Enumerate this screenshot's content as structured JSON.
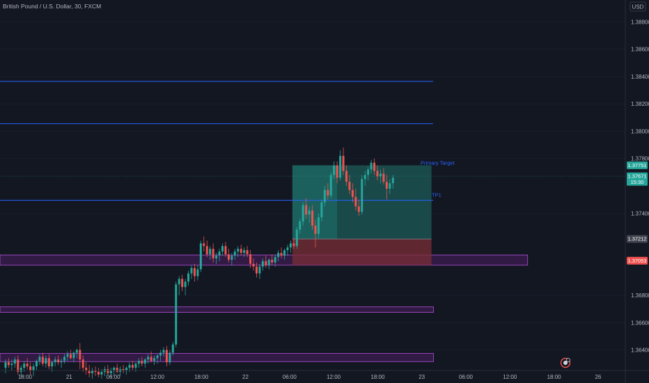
{
  "header": {
    "title": "British Pound / U.S. Dollar, 30, FXCM"
  },
  "currency_badge": "USD",
  "colors": {
    "background": "#131722",
    "up": "#26a69a",
    "down": "#ef5350",
    "level_line": "#2962ff",
    "zone_fill": "#4a1f63",
    "zone_border": "#b04fd6",
    "profit_fill": "#1c5b57",
    "loss_fill": "#7a2d35",
    "axis_text": "#b2b5be",
    "grid": "#1e2230"
  },
  "chart_data": {
    "type": "candlestick",
    "title": "British Pound / U.S. Dollar, 30, FXCM",
    "x_ticks": [
      "18:00",
      "21",
      "06:00",
      "12:00",
      "18:00",
      "22",
      "06:00",
      "12:00",
      "18:00",
      "23",
      "06:00",
      "12:00",
      "18:00",
      "26"
    ],
    "y_ticks": [
      "1.38800",
      "1.38600",
      "1.38400",
      "1.38200",
      "1.38000",
      "1.37800",
      "1.37400",
      "1.36800",
      "1.36600",
      "1.36400"
    ],
    "ylim": [
      1.3625,
      1.3895
    ],
    "price_labels": [
      {
        "label": "1.37751",
        "value": 1.37751,
        "color": "#26a69a"
      },
      {
        "label": "1.37671",
        "sub": "15:30",
        "value": 1.37671,
        "color": "#26a69a"
      },
      {
        "label": "1.37212",
        "value": 1.37212,
        "color": "#434651"
      },
      {
        "label": "1.37053",
        "value": 1.37053,
        "color": "#ef5350"
      }
    ],
    "horizontal_lines": [
      {
        "value": 1.38365
      },
      {
        "value": 1.38055
      },
      {
        "value": 1.37495
      }
    ],
    "zones": [
      {
        "top": 1.37095,
        "bottom": 1.3702,
        "end_frac": 0.813
      },
      {
        "top": 1.36715,
        "bottom": 1.36675,
        "end_frac": 0.668
      },
      {
        "top": 1.36375,
        "bottom": 1.36315,
        "end_frac": 0.668
      }
    ],
    "position": {
      "entry": 1.37212,
      "target": 1.37751,
      "stop": 1.3702,
      "start_index": 93,
      "end_index": 137,
      "hold_end_index": 107
    },
    "annotations": [
      {
        "text": "Primary Target",
        "value": 1.37751
      },
      {
        "text": "TP1",
        "value": 1.37516
      }
    ],
    "candles": [
      [
        1.3627,
        1.3633,
        1.3623,
        1.3631
      ],
      [
        1.3631,
        1.3634,
        1.3627,
        1.3629
      ],
      [
        1.3629,
        1.3633,
        1.3625,
        1.363
      ],
      [
        1.363,
        1.3635,
        1.3627,
        1.3633
      ],
      [
        1.3633,
        1.3636,
        1.3622,
        1.3624
      ],
      [
        1.3624,
        1.3629,
        1.362,
        1.3627
      ],
      [
        1.3627,
        1.3632,
        1.3624,
        1.363
      ],
      [
        1.363,
        1.3634,
        1.3626,
        1.3628
      ],
      [
        1.3628,
        1.3631,
        1.3622,
        1.3625
      ],
      [
        1.3625,
        1.363,
        1.3621,
        1.3628
      ],
      [
        1.3628,
        1.3633,
        1.3625,
        1.3632
      ],
      [
        1.3632,
        1.3637,
        1.3629,
        1.3635
      ],
      [
        1.3635,
        1.3638,
        1.3628,
        1.363
      ],
      [
        1.363,
        1.3636,
        1.3627,
        1.3634
      ],
      [
        1.3634,
        1.3637,
        1.3626,
        1.3628
      ],
      [
        1.3628,
        1.3632,
        1.3624,
        1.3631
      ],
      [
        1.3631,
        1.3635,
        1.3628,
        1.3633
      ],
      [
        1.3633,
        1.3636,
        1.3629,
        1.3631
      ],
      [
        1.3631,
        1.3634,
        1.3627,
        1.3632
      ],
      [
        1.3632,
        1.3637,
        1.363,
        1.3635
      ],
      [
        1.3635,
        1.3639,
        1.3632,
        1.3637
      ],
      [
        1.3637,
        1.364,
        1.3633,
        1.3634
      ],
      [
        1.3634,
        1.3639,
        1.3631,
        1.3638
      ],
      [
        1.3638,
        1.3641,
        1.3634,
        1.364
      ],
      [
        1.364,
        1.3645,
        1.3626,
        1.3633
      ],
      [
        1.3633,
        1.3636,
        1.3624,
        1.3627
      ],
      [
        1.3627,
        1.3631,
        1.3622,
        1.3625
      ],
      [
        1.3625,
        1.3629,
        1.362,
        1.3623
      ],
      [
        1.3623,
        1.3627,
        1.3619,
        1.3625
      ],
      [
        1.3625,
        1.3628,
        1.3621,
        1.3624
      ],
      [
        1.3624,
        1.3627,
        1.362,
        1.3622
      ],
      [
        1.3622,
        1.3626,
        1.3619,
        1.3624
      ],
      [
        1.3624,
        1.3628,
        1.3621,
        1.3626
      ],
      [
        1.3626,
        1.3629,
        1.3622,
        1.3623
      ],
      [
        1.3623,
        1.3627,
        1.362,
        1.3625
      ],
      [
        1.3625,
        1.3628,
        1.3621,
        1.3627
      ],
      [
        1.3627,
        1.363,
        1.3623,
        1.3624
      ],
      [
        1.3624,
        1.3628,
        1.3621,
        1.3626
      ],
      [
        1.3626,
        1.3629,
        1.3623,
        1.3625
      ],
      [
        1.3625,
        1.3628,
        1.3622,
        1.3627
      ],
      [
        1.3627,
        1.3631,
        1.3624,
        1.3629
      ],
      [
        1.3629,
        1.3632,
        1.3625,
        1.3627
      ],
      [
        1.3627,
        1.3631,
        1.3624,
        1.363
      ],
      [
        1.363,
        1.3634,
        1.3627,
        1.3632
      ],
      [
        1.3632,
        1.3635,
        1.3628,
        1.363
      ],
      [
        1.363,
        1.3634,
        1.3627,
        1.3633
      ],
      [
        1.3633,
        1.3637,
        1.363,
        1.3635
      ],
      [
        1.3635,
        1.3639,
        1.3631,
        1.3632
      ],
      [
        1.3632,
        1.3636,
        1.3629,
        1.3634
      ],
      [
        1.3634,
        1.3637,
        1.363,
        1.3636
      ],
      [
        1.3636,
        1.364,
        1.3632,
        1.3638
      ],
      [
        1.3638,
        1.3642,
        1.3635,
        1.364
      ],
      [
        1.364,
        1.3643,
        1.3628,
        1.3631
      ],
      [
        1.3631,
        1.364,
        1.3629,
        1.3638
      ],
      [
        1.3638,
        1.3646,
        1.3636,
        1.3644
      ],
      [
        1.3644,
        1.369,
        1.3642,
        1.3688
      ],
      [
        1.3688,
        1.3694,
        1.368,
        1.3692
      ],
      [
        1.3692,
        1.3695,
        1.3683,
        1.3686
      ],
      [
        1.3686,
        1.3692,
        1.368,
        1.369
      ],
      [
        1.369,
        1.3698,
        1.3687,
        1.3696
      ],
      [
        1.3696,
        1.3702,
        1.3692,
        1.37
      ],
      [
        1.37,
        1.3703,
        1.369,
        1.3694
      ],
      [
        1.3694,
        1.3702,
        1.3691,
        1.3699
      ],
      [
        1.3699,
        1.372,
        1.3697,
        1.3718
      ],
      [
        1.3718,
        1.3723,
        1.3712,
        1.3716
      ],
      [
        1.3716,
        1.372,
        1.3708,
        1.371
      ],
      [
        1.371,
        1.3716,
        1.3706,
        1.3714
      ],
      [
        1.3714,
        1.3718,
        1.3704,
        1.3707
      ],
      [
        1.3707,
        1.3711,
        1.3703,
        1.3709
      ],
      [
        1.3709,
        1.3714,
        1.3705,
        1.3712
      ],
      [
        1.3712,
        1.3718,
        1.3709,
        1.3716
      ],
      [
        1.3716,
        1.3719,
        1.3708,
        1.371
      ],
      [
        1.371,
        1.3714,
        1.3704,
        1.3706
      ],
      [
        1.3706,
        1.3711,
        1.3702,
        1.3709
      ],
      [
        1.3709,
        1.3714,
        1.3706,
        1.3712
      ],
      [
        1.3712,
        1.3716,
        1.3708,
        1.3714
      ],
      [
        1.3714,
        1.3717,
        1.3709,
        1.3711
      ],
      [
        1.3711,
        1.3715,
        1.3708,
        1.3713
      ],
      [
        1.3713,
        1.3716,
        1.3708,
        1.371
      ],
      [
        1.371,
        1.3713,
        1.37,
        1.3703
      ],
      [
        1.3703,
        1.3707,
        1.3698,
        1.3701
      ],
      [
        1.3701,
        1.3704,
        1.3693,
        1.3696
      ],
      [
        1.3696,
        1.3703,
        1.3692,
        1.3701
      ],
      [
        1.3701,
        1.3707,
        1.3698,
        1.3705
      ],
      [
        1.3705,
        1.3709,
        1.37,
        1.3702
      ],
      [
        1.3702,
        1.3707,
        1.3699,
        1.3706
      ],
      [
        1.3706,
        1.371,
        1.3702,
        1.3704
      ],
      [
        1.3704,
        1.371,
        1.3701,
        1.3708
      ],
      [
        1.3708,
        1.3713,
        1.3705,
        1.3711
      ],
      [
        1.3711,
        1.3715,
        1.3707,
        1.3709
      ],
      [
        1.3709,
        1.3714,
        1.3706,
        1.3713
      ],
      [
        1.3713,
        1.3717,
        1.3709,
        1.3715
      ],
      [
        1.3715,
        1.372,
        1.3711,
        1.3718
      ],
      [
        1.3718,
        1.3722,
        1.3714,
        1.3716
      ],
      [
        1.3716,
        1.373,
        1.3714,
        1.3728
      ],
      [
        1.3728,
        1.3736,
        1.3725,
        1.3734
      ],
      [
        1.3734,
        1.3748,
        1.3731,
        1.3746
      ],
      [
        1.3746,
        1.3751,
        1.3736,
        1.3739
      ],
      [
        1.3739,
        1.3745,
        1.3733,
        1.3742
      ],
      [
        1.3742,
        1.3746,
        1.3728,
        1.3731
      ],
      [
        1.3731,
        1.3735,
        1.3715,
        1.3725
      ],
      [
        1.3725,
        1.374,
        1.3722,
        1.3737
      ],
      [
        1.3737,
        1.375,
        1.3734,
        1.3748
      ],
      [
        1.3748,
        1.376,
        1.3745,
        1.3757
      ],
      [
        1.3757,
        1.3762,
        1.375,
        1.3753
      ],
      [
        1.3753,
        1.377,
        1.3751,
        1.3768
      ],
      [
        1.3768,
        1.3778,
        1.3765,
        1.3775
      ],
      [
        1.3775,
        1.3778,
        1.3762,
        1.3766
      ],
      [
        1.3766,
        1.3786,
        1.3764,
        1.3782
      ],
      [
        1.3782,
        1.3788,
        1.3768,
        1.3771
      ],
      [
        1.3771,
        1.3775,
        1.376,
        1.3763
      ],
      [
        1.3763,
        1.3768,
        1.3754,
        1.3757
      ],
      [
        1.3757,
        1.3762,
        1.3748,
        1.3752
      ],
      [
        1.3752,
        1.3758,
        1.3742,
        1.3745
      ],
      [
        1.3745,
        1.375,
        1.3738,
        1.3741
      ],
      [
        1.3741,
        1.3768,
        1.3739,
        1.3765
      ],
      [
        1.3765,
        1.3771,
        1.376,
        1.3768
      ],
      [
        1.3768,
        1.3774,
        1.3764,
        1.3772
      ],
      [
        1.3772,
        1.3779,
        1.3769,
        1.3777
      ],
      [
        1.3777,
        1.378,
        1.3768,
        1.3771
      ],
      [
        1.3771,
        1.3775,
        1.3764,
        1.3767
      ],
      [
        1.3767,
        1.3772,
        1.3762,
        1.3769
      ],
      [
        1.3769,
        1.3773,
        1.3761,
        1.3763
      ],
      [
        1.3763,
        1.3768,
        1.375,
        1.3758
      ],
      [
        1.3758,
        1.3765,
        1.3754,
        1.3762
      ],
      [
        1.3762,
        1.3768,
        1.3758,
        1.3766
      ]
    ]
  }
}
